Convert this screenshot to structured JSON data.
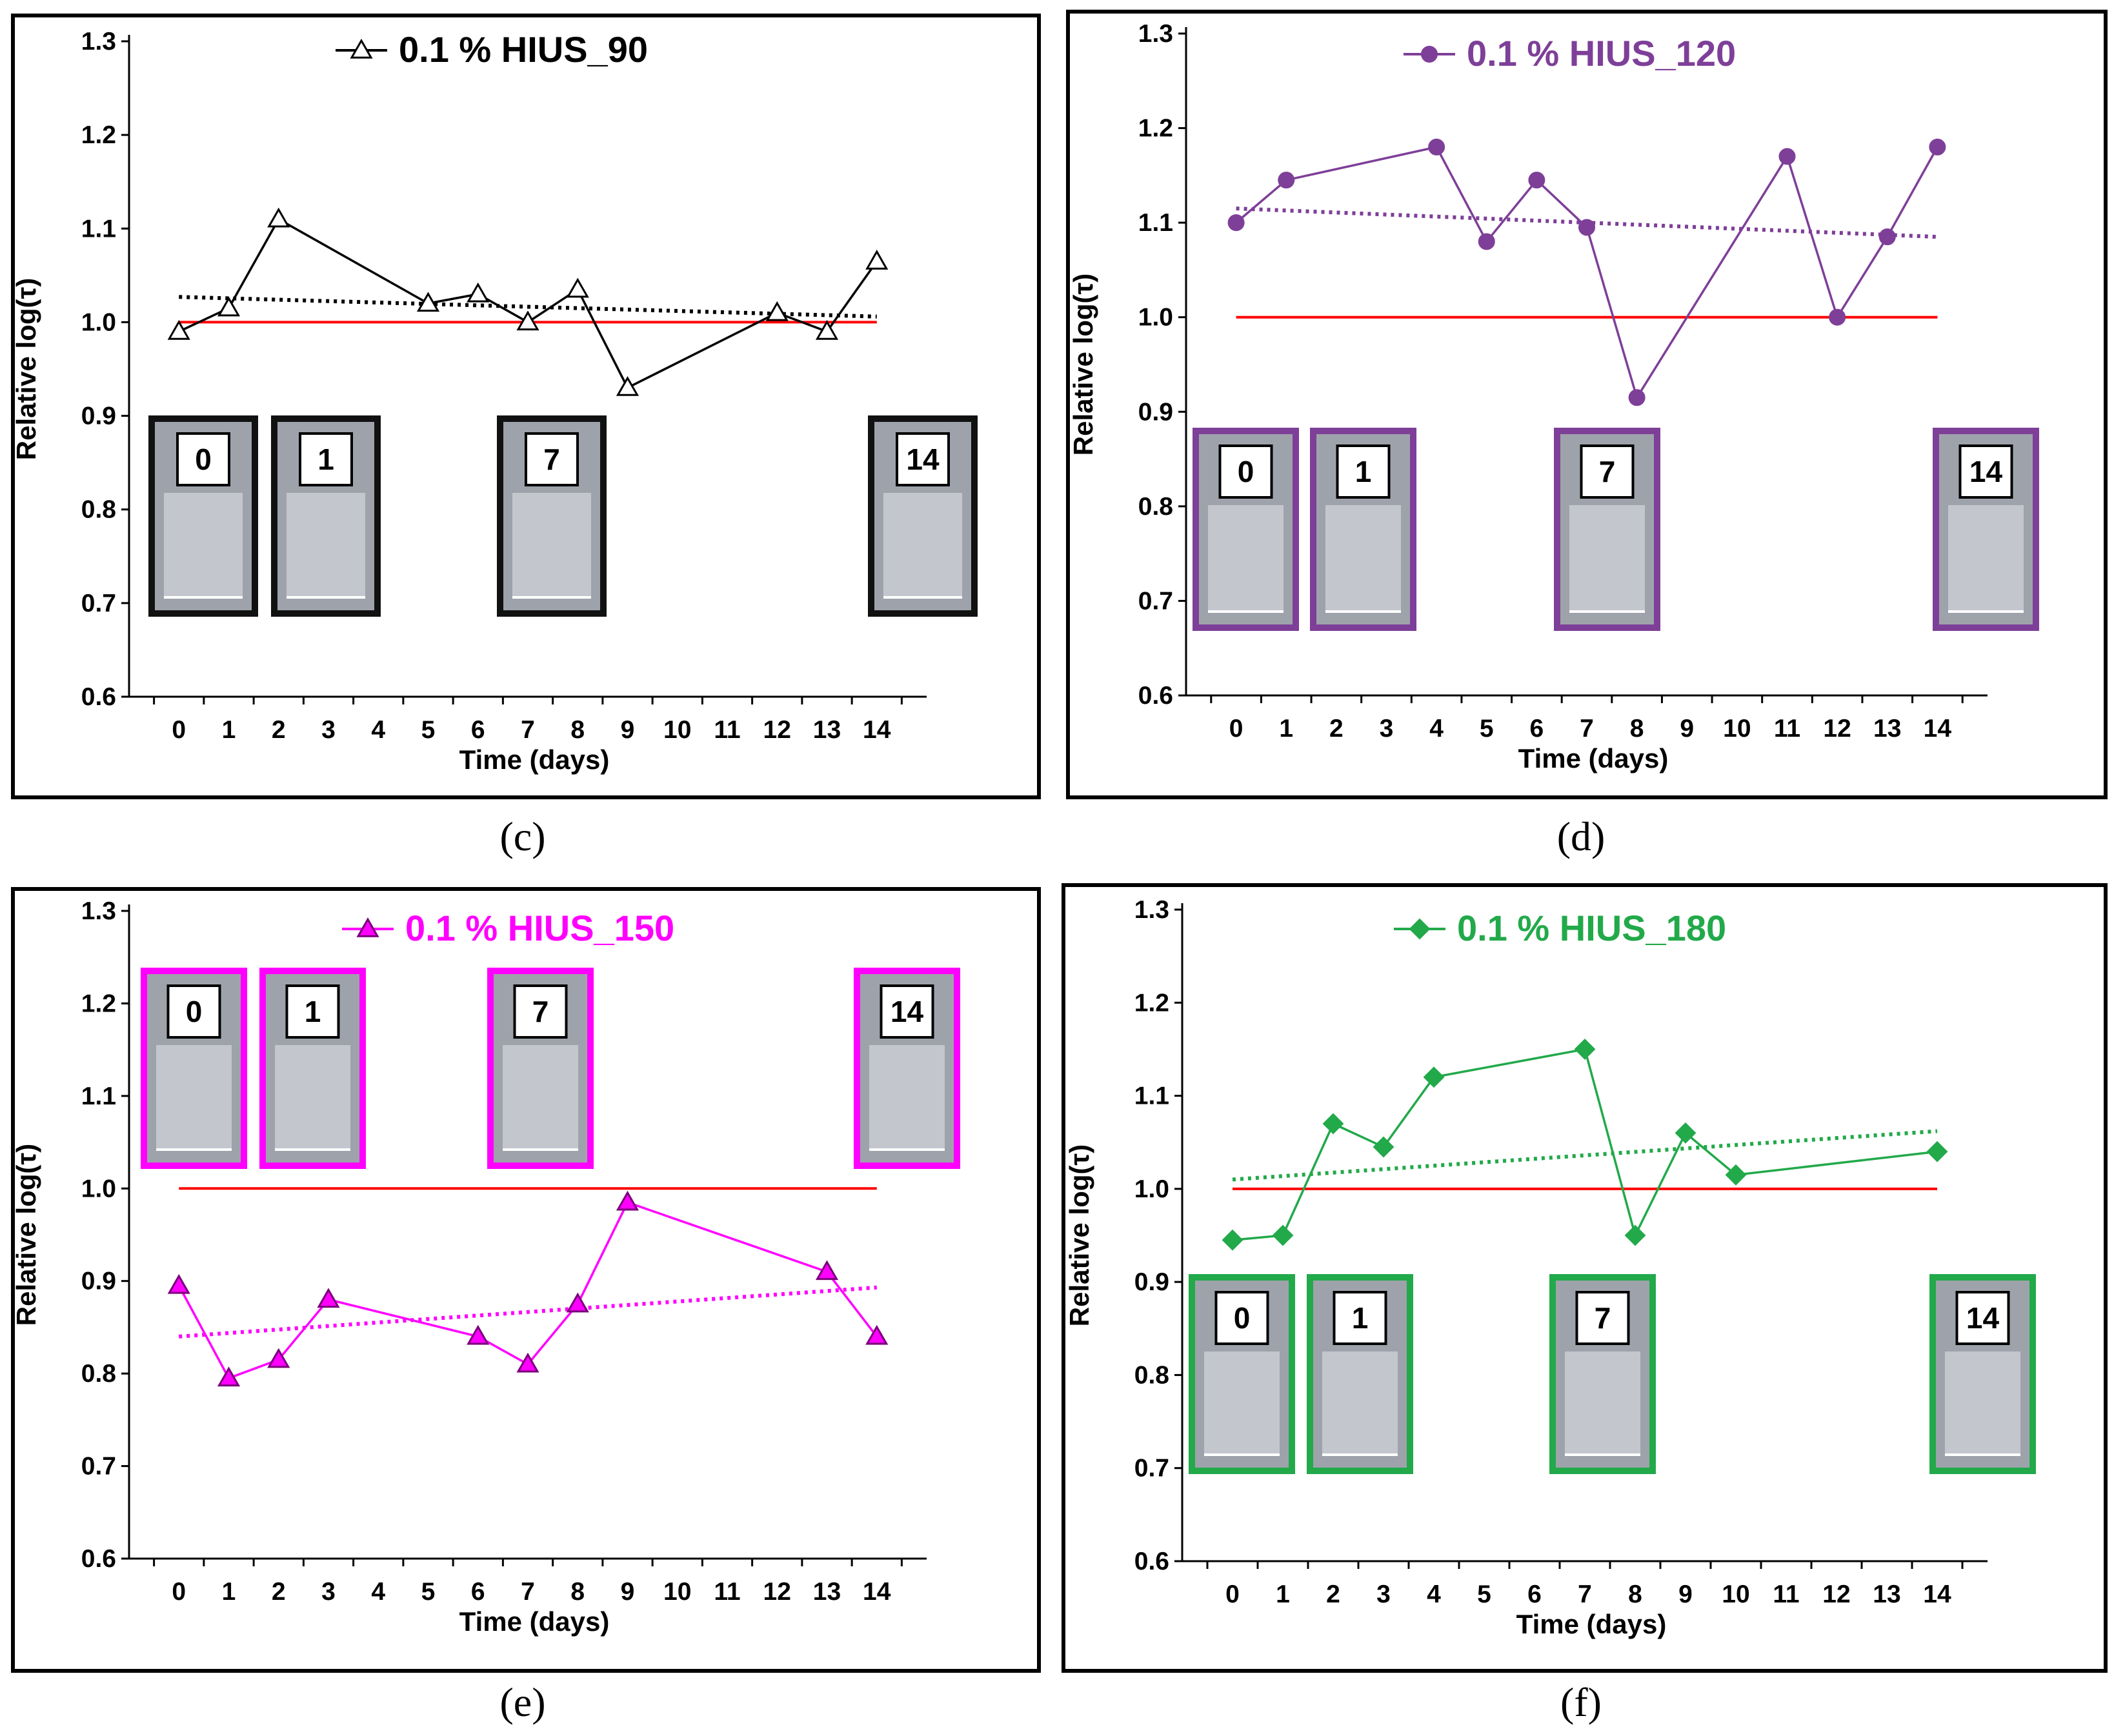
{
  "chart_data": [
    {
      "type": "line",
      "panel": "(c)",
      "legend": "0.1 % HIUS_90",
      "color": "#000000",
      "marker": "triangle-open",
      "xlabel": "Time (days)",
      "ylabel": "Relative log(τ)",
      "xticks": [
        0,
        1,
        2,
        3,
        4,
        5,
        6,
        7,
        8,
        9,
        10,
        11,
        12,
        13,
        14
      ],
      "yticks": [
        "0.6",
        "0.7",
        "0.8",
        "0.9",
        "1.0",
        "1.1",
        "1.2",
        "1.3"
      ],
      "xlim": [
        -1,
        15
      ],
      "ylim": [
        0.6,
        1.3
      ],
      "x": [
        0,
        1,
        2,
        5,
        6,
        7,
        8,
        9,
        12,
        13,
        14
      ],
      "y": [
        0.99,
        1.015,
        1.11,
        1.02,
        1.03,
        1.0,
        1.035,
        0.93,
        1.01,
        0.99,
        1.065
      ],
      "reference_line": 1.0,
      "trend": [
        1.027,
        1.006
      ],
      "insets": [
        "0",
        "1",
        "7",
        "14"
      ]
    },
    {
      "type": "line",
      "panel": "(d)",
      "legend": "0.1 % HIUS_120",
      "color": "#7e3f98",
      "marker": "circle",
      "xlabel": "Time (days)",
      "ylabel": "Relative log(τ)",
      "xticks": [
        0,
        1,
        2,
        3,
        4,
        5,
        6,
        7,
        8,
        9,
        10,
        11,
        12,
        13,
        14
      ],
      "yticks": [
        "0.6",
        "0.7",
        "0.8",
        "0.9",
        "1.0",
        "1.1",
        "1.2",
        "1.3"
      ],
      "xlim": [
        -1,
        15
      ],
      "ylim": [
        0.6,
        1.3
      ],
      "x": [
        0,
        1,
        4,
        5,
        6,
        7,
        8,
        11,
        12,
        13,
        14
      ],
      "y": [
        1.1,
        1.145,
        1.18,
        1.08,
        1.145,
        1.095,
        0.915,
        1.17,
        1.0,
        1.085,
        1.18
      ],
      "reference_line": 1.0,
      "trend": [
        1.115,
        1.085
      ],
      "insets": [
        "0",
        "1",
        "7",
        "14"
      ]
    },
    {
      "type": "line",
      "panel": "(e)",
      "legend": "0.1 % HIUS_150",
      "color": "#ff00ff",
      "marker": "triangle",
      "xlabel": "Time (days)",
      "ylabel": "Relative log(τ)",
      "xticks": [
        0,
        1,
        2,
        3,
        4,
        5,
        6,
        7,
        8,
        9,
        10,
        11,
        12,
        13,
        14
      ],
      "yticks": [
        "0.6",
        "0.7",
        "0.8",
        "0.9",
        "1.0",
        "1.1",
        "1.2",
        "1.3"
      ],
      "xlim": [
        -1,
        15
      ],
      "ylim": [
        0.6,
        1.3
      ],
      "x": [
        0,
        1,
        2,
        3,
        6,
        7,
        8,
        9,
        13,
        14
      ],
      "y": [
        0.895,
        0.795,
        0.815,
        0.88,
        0.84,
        0.81,
        0.875,
        0.985,
        0.91,
        0.84
      ],
      "reference_line": 1.0,
      "trend": [
        0.84,
        0.893
      ],
      "insets": [
        "0",
        "1",
        "7",
        "14"
      ]
    },
    {
      "type": "line",
      "panel": "(f)",
      "legend": "0.1 % HIUS_180",
      "color": "#22a94a",
      "marker": "diamond",
      "xlabel": "Time (days)",
      "ylabel": "Relative log(τ)",
      "xticks": [
        0,
        1,
        2,
        3,
        4,
        5,
        6,
        7,
        8,
        9,
        10,
        11,
        12,
        13,
        14
      ],
      "yticks": [
        "0.6",
        "0.7",
        "0.8",
        "0.9",
        "1.0",
        "1.1",
        "1.2",
        "1.3"
      ],
      "xlim": [
        -1,
        15
      ],
      "ylim": [
        0.6,
        1.3
      ],
      "x": [
        0,
        1,
        2,
        3,
        4,
        7,
        8,
        9,
        10,
        14
      ],
      "y": [
        0.945,
        0.95,
        1.07,
        1.045,
        1.12,
        1.15,
        0.95,
        1.06,
        1.015,
        1.04
      ],
      "reference_line": 1.0,
      "trend": [
        1.01,
        1.062
      ],
      "insets": [
        "0",
        "1",
        "7",
        "14"
      ]
    }
  ],
  "colors": {
    "reference": "#ff0000",
    "axis": "#000000"
  }
}
